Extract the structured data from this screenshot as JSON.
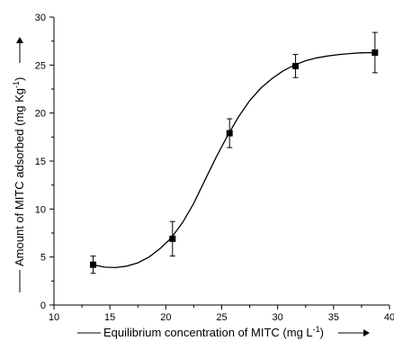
{
  "chart_data": {
    "type": "scatter",
    "xlabel_text": "Equilibrium concentration of MITC (mg L",
    "xlabel_sup": "-1",
    "xlabel_close": ")",
    "ylabel_text": "Amount of  MITC adsorbed (mg Kg",
    "ylabel_sup": "-1",
    "ylabel_close": ")",
    "xlim": [
      10,
      40
    ],
    "ylim": [
      0,
      30
    ],
    "x_ticks": [
      10,
      15,
      20,
      25,
      30,
      35,
      40
    ],
    "y_ticks": [
      0,
      5,
      10,
      15,
      20,
      25,
      30
    ],
    "series": [
      {
        "points": [
          {
            "x": 13.5,
            "y": 4.2,
            "err": 0.9
          },
          {
            "x": 20.6,
            "y": 6.9,
            "err": 1.8
          },
          {
            "x": 25.7,
            "y": 17.9,
            "err": 1.5
          },
          {
            "x": 31.6,
            "y": 24.9,
            "err": 1.2
          },
          {
            "x": 38.7,
            "y": 26.3,
            "err": 2.1
          }
        ]
      }
    ],
    "fit_curve": [
      [
        13.5,
        4.2
      ],
      [
        14.5,
        3.95
      ],
      [
        15.5,
        3.9
      ],
      [
        16.5,
        4.05
      ],
      [
        17.5,
        4.4
      ],
      [
        18.5,
        5.0
      ],
      [
        19.5,
        5.9
      ],
      [
        20.5,
        7.0
      ],
      [
        21.5,
        8.6
      ],
      [
        22.5,
        10.6
      ],
      [
        23.5,
        13.0
      ],
      [
        24.5,
        15.4
      ],
      [
        25.5,
        17.6
      ],
      [
        26.5,
        19.6
      ],
      [
        27.5,
        21.3
      ],
      [
        28.5,
        22.6
      ],
      [
        29.5,
        23.6
      ],
      [
        30.5,
        24.4
      ],
      [
        31.5,
        25.0
      ],
      [
        32.5,
        25.45
      ],
      [
        33.5,
        25.75
      ],
      [
        34.5,
        25.95
      ],
      [
        35.5,
        26.1
      ],
      [
        36.5,
        26.2
      ],
      [
        37.5,
        26.28
      ],
      [
        38.7,
        26.3
      ]
    ],
    "grid": false,
    "legend": "none"
  }
}
